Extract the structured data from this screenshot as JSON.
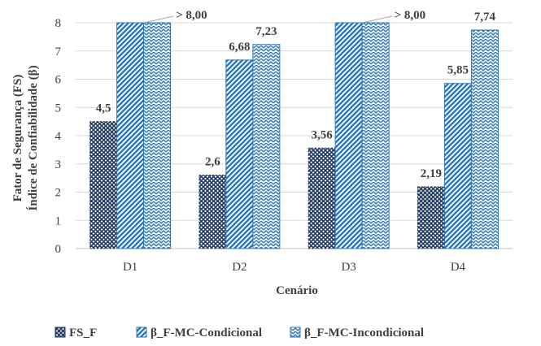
{
  "chart_data": {
    "type": "bar",
    "categories": [
      "D1",
      "D2",
      "D3",
      "D4"
    ],
    "series": [
      {
        "name": "FS_F",
        "values": [
          4.5,
          2.6,
          3.56,
          2.19
        ],
        "labels": [
          "4,5",
          "2,6",
          "3,56",
          "2,19"
        ],
        "pattern": "crosshatch",
        "color": "#1f3864"
      },
      {
        "name": "β_F-MC-Condicional",
        "values": [
          8,
          6.68,
          8,
          5.85
        ],
        "labels": [
          "",
          "6,68",
          "",
          "5,85"
        ],
        "pattern": "diagonal",
        "color": "#2e75b6"
      },
      {
        "name": "β_F-MC-Incondicional",
        "values": [
          8,
          7.23,
          8,
          7.74
        ],
        "labels": [
          "",
          "7,23",
          "",
          "7,74"
        ],
        "pattern": "zigzag",
        "color": "#2e75b6"
      }
    ],
    "annotations": [
      {
        "category": "D1",
        "text": "> 8,00"
      },
      {
        "category": "D3",
        "text": "> 8,00"
      }
    ],
    "ylabel_lines": [
      "Fator de Segurança (FS)",
      "Índice de Confiabilidade (β)"
    ],
    "xlabel": "Cenário",
    "ylim": [
      0,
      8
    ],
    "yticks": [
      0,
      1,
      2,
      3,
      4,
      5,
      6,
      7,
      8
    ],
    "grid": true,
    "legend_position": "bottom"
  }
}
